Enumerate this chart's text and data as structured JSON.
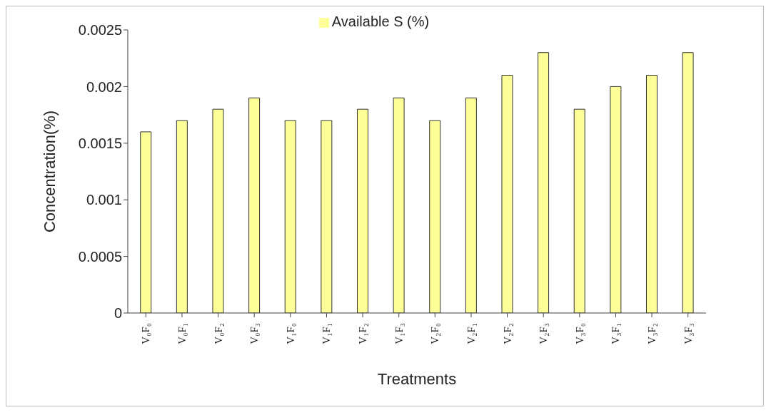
{
  "chart_data": {
    "type": "bar",
    "xlabel": "Treatments",
    "ylabel": "Concentration(%)",
    "categories": [
      "V₀F₀",
      "V₀F₁",
      "V₀F₂",
      "V₀F₃",
      "V₁F₀",
      "V₁F₁",
      "V₁F₂",
      "V₁F₃",
      "V₂F₀",
      "V₂F₁",
      "V₂F₂",
      "V₂F₃",
      "V₃F₀",
      "V₃F₁",
      "V₃F₂",
      "V₃F₃"
    ],
    "series": [
      {
        "name": "Available S (%)",
        "color": "#ffff99",
        "values": [
          0.0016,
          0.0017,
          0.0018,
          0.0019,
          0.0017,
          0.0017,
          0.0018,
          0.0019,
          0.0017,
          0.0019,
          0.0021,
          0.0023,
          0.0018,
          0.002,
          0.0021,
          0.0023
        ]
      }
    ],
    "ylim": [
      0,
      0.0025
    ],
    "yticks": [
      0,
      0.0005,
      0.001,
      0.0015,
      0.002,
      0.0025
    ],
    "grid": false,
    "legend": "top"
  }
}
